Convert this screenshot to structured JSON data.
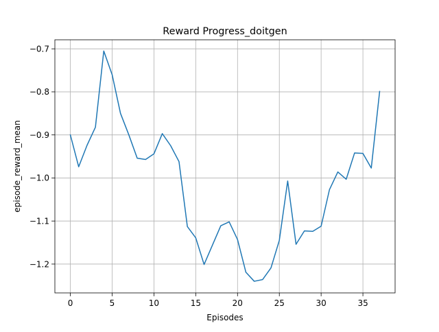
{
  "chart_data": {
    "type": "line",
    "title": "Reward Progress_doitgen",
    "xlabel": "Episodes",
    "ylabel": "episode_reward_mean",
    "xlim": [
      -1.85,
      38.85
    ],
    "ylim": [
      -1.267,
      -0.679
    ],
    "xticks": [
      0,
      5,
      10,
      15,
      20,
      25,
      30,
      35
    ],
    "xtick_labels": [
      "0",
      "5",
      "10",
      "15",
      "20",
      "25",
      "30",
      "35"
    ],
    "yticks": [
      -1.2,
      -1.1,
      -1.0,
      -0.9,
      -0.8,
      -0.7
    ],
    "ytick_labels": [
      "−1.2",
      "−1.1",
      "−1.0",
      "−0.9",
      "−0.8",
      "−0.7"
    ],
    "grid": true,
    "legend": "none",
    "series": [
      {
        "color": "#1f77b4",
        "x": [
          0,
          1,
          2,
          3,
          4,
          5,
          6,
          7,
          8,
          9,
          10,
          11,
          12,
          13,
          14,
          15,
          16,
          17,
          18,
          19,
          20,
          21,
          22,
          23,
          24,
          25,
          26,
          27,
          28,
          29,
          30,
          31,
          32,
          33,
          34,
          35,
          36,
          37
        ],
        "y": [
          -0.9,
          -0.974,
          -0.924,
          -0.882,
          -0.705,
          -0.76,
          -0.85,
          -0.9,
          -0.954,
          -0.957,
          -0.944,
          -0.897,
          -0.925,
          -0.962,
          -1.113,
          -1.139,
          -1.201,
          -1.156,
          -1.111,
          -1.102,
          -1.143,
          -1.219,
          -1.24,
          -1.236,
          -1.209,
          -1.145,
          -1.007,
          -1.154,
          -1.123,
          -1.124,
          -1.112,
          -1.027,
          -0.986,
          -1.003,
          -0.942,
          -0.943,
          -0.977,
          -0.799
        ]
      }
    ]
  }
}
